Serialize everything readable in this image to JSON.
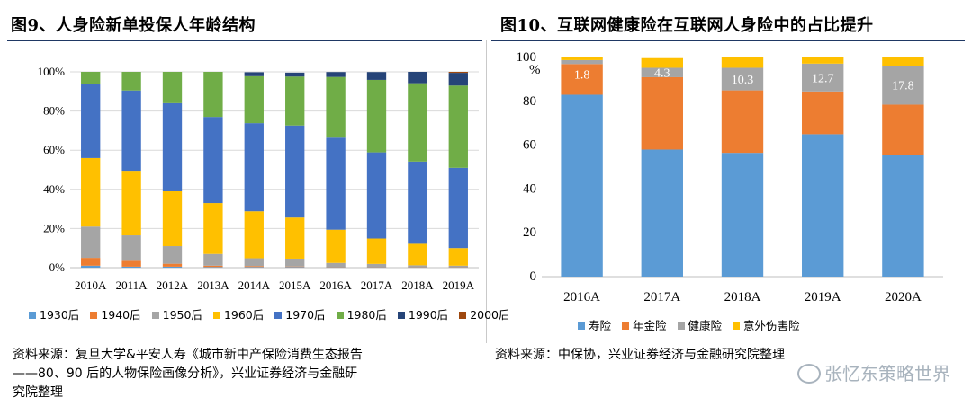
{
  "left": {
    "title": "图9、人身险新单投保人年龄结构",
    "source_lines": [
      "资料来源：复旦大学&平安人寿《城市新中产保险消费生态报告",
      "——80、90 后的人物保险画像分析》，兴业证券经济与金融研",
      "究院整理"
    ]
  },
  "right": {
    "title": "图10、互联网健康险在互联网人身险中的占比提升",
    "source": "资料来源：中保协，兴业证券经济与金融研究院整理"
  },
  "watermark": "张忆东策略世界",
  "chart_data": [
    {
      "type": "bar",
      "stacked": true,
      "percent": true,
      "title": "",
      "categories": [
        "2010A",
        "2011A",
        "2012A",
        "2013A",
        "2014A",
        "2015A",
        "2016A",
        "2017A",
        "2018A",
        "2019A"
      ],
      "ylim": [
        0,
        100
      ],
      "ytick_labels": [
        "0%",
        "20%",
        "40%",
        "60%",
        "80%",
        "100%"
      ],
      "ytick_values": [
        0,
        20,
        40,
        60,
        80,
        100
      ],
      "legend_position": "bottom",
      "series": [
        {
          "name": "1930后",
          "color": "#5b9bd5",
          "values": [
            1,
            0.5,
            0.5,
            0.3,
            0.3,
            0.3,
            0.2,
            0.2,
            0.1,
            0.1
          ]
        },
        {
          "name": "1940后",
          "color": "#ed7d31",
          "values": [
            4,
            3,
            1.5,
            0.7,
            0.5,
            0.3,
            0.2,
            0.2,
            0.1,
            0.1
          ]
        },
        {
          "name": "1950后",
          "color": "#a5a5a5",
          "values": [
            16,
            13,
            9,
            6,
            4,
            4,
            2,
            1.5,
            1,
            0.8
          ]
        },
        {
          "name": "1960后",
          "color": "#ffc000",
          "values": [
            35,
            33,
            28,
            26,
            24,
            21,
            17,
            13,
            11,
            9
          ]
        },
        {
          "name": "1970后",
          "color": "#4472c4",
          "values": [
            38,
            41,
            45,
            44,
            45,
            47,
            47,
            44,
            42,
            41
          ]
        },
        {
          "name": "1980后",
          "color": "#70ad47",
          "values": [
            6,
            9.5,
            16,
            23,
            24,
            25,
            31,
            37,
            40,
            42
          ]
        },
        {
          "name": "1990后",
          "color": "#264478",
          "values": [
            0,
            0,
            0,
            0,
            2,
            2,
            2.5,
            4,
            5.8,
            6.5
          ]
        },
        {
          "name": "2000后",
          "color": "#9e480e",
          "values": [
            0,
            0,
            0,
            0,
            0,
            0,
            0,
            0,
            0,
            0.5
          ]
        }
      ]
    },
    {
      "type": "bar",
      "stacked": true,
      "title": "",
      "unit_label": "%",
      "categories": [
        "2016A",
        "2017A",
        "2018A",
        "2019A",
        "2020A"
      ],
      "ylim": [
        0,
        100
      ],
      "ytick_labels": [
        "0",
        "20",
        "40",
        "60",
        "80",
        "100"
      ],
      "ytick_values": [
        0,
        20,
        40,
        60,
        80,
        100
      ],
      "legend_position": "bottom",
      "series": [
        {
          "name": "寿险",
          "color": "#5b9bd5",
          "values": [
            83,
            58,
            56.5,
            65,
            55.5
          ]
        },
        {
          "name": "年金险",
          "color": "#ed7d31",
          "values": [
            14,
            33,
            28.5,
            19.5,
            23
          ]
        },
        {
          "name": "健康险",
          "color": "#a5a5a5",
          "values": [
            1.8,
            4.3,
            10.3,
            12.7,
            17.8
          ]
        },
        {
          "name": "意外伤害险",
          "color": "#ffc000",
          "values": [
            1.2,
            4.4,
            4.7,
            2.8,
            3.7
          ]
        }
      ],
      "data_labels": [
        "1.8",
        "4.3",
        "10.3",
        "12.7",
        "17.8"
      ]
    }
  ]
}
